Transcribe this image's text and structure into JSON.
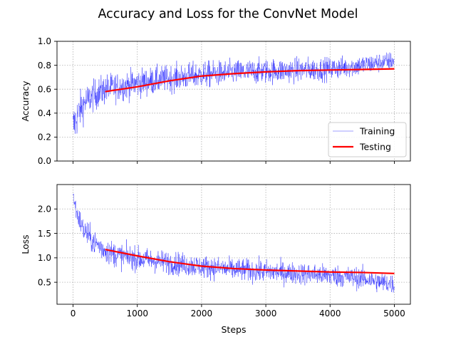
{
  "figure": {
    "suptitle": "Accuracy and Loss for the ConvNet Model"
  },
  "colors": {
    "training": "#0000ff",
    "testing": "#ff0000",
    "grid": "#b0b0b0",
    "axes": "#000000"
  },
  "chart_data": [
    {
      "type": "line",
      "panel": "top",
      "ylabel": "Accuracy",
      "xlabel": "",
      "xlim": [
        -250,
        5250
      ],
      "ylim": [
        0.0,
        1.0
      ],
      "yticks": [
        0.0,
        0.2,
        0.4,
        0.6,
        0.8,
        1.0
      ],
      "ytick_labels": [
        "0.0",
        "0.2",
        "0.4",
        "0.6",
        "0.8",
        "1.0"
      ],
      "xticks": [
        0,
        1000,
        2000,
        3000,
        4000,
        5000
      ],
      "grid": true,
      "legend": {
        "placement": "lower-right",
        "entries": [
          {
            "label": "Training",
            "series": "training"
          },
          {
            "label": "Testing",
            "series": "testing"
          }
        ]
      },
      "series": [
        {
          "name": "Training",
          "key": "training",
          "style": "thin-noisy",
          "x": [
            0,
            100,
            200,
            300,
            400,
            500,
            700,
            1000,
            1500,
            2000,
            2500,
            3000,
            3500,
            4000,
            4500,
            5000
          ],
          "values": [
            0.28,
            0.42,
            0.5,
            0.54,
            0.57,
            0.6,
            0.62,
            0.65,
            0.69,
            0.72,
            0.74,
            0.75,
            0.76,
            0.77,
            0.8,
            0.84
          ],
          "noise_band": [
            0.22,
            0.18,
            0.16,
            0.15,
            0.15,
            0.15,
            0.14,
            0.14,
            0.13,
            0.13,
            0.12,
            0.12,
            0.12,
            0.11,
            0.1,
            0.09
          ]
        },
        {
          "name": "Testing",
          "key": "testing",
          "style": "thick",
          "x": [
            500,
            1000,
            1500,
            2000,
            2500,
            3000,
            3500,
            4000,
            4500,
            5000
          ],
          "values": [
            0.58,
            0.62,
            0.67,
            0.71,
            0.73,
            0.745,
            0.755,
            0.76,
            0.765,
            0.77
          ]
        }
      ]
    },
    {
      "type": "line",
      "panel": "bottom",
      "ylabel": "Loss",
      "xlabel": "Steps",
      "xlim": [
        -250,
        5250
      ],
      "ylim": [
        0.05,
        2.5
      ],
      "yticks": [
        0.5,
        1.0,
        1.5,
        2.0
      ],
      "ytick_labels": [
        "0.5",
        "1.0",
        "1.5",
        "2.0"
      ],
      "xticks": [
        0,
        1000,
        2000,
        3000,
        4000,
        5000
      ],
      "xtick_labels": [
        "0",
        "1000",
        "2000",
        "3000",
        "4000",
        "5000"
      ],
      "grid": true,
      "series": [
        {
          "name": "Training",
          "key": "training",
          "style": "thin-noisy",
          "x": [
            0,
            50,
            150,
            300,
            500,
            700,
            1000,
            1500,
            2000,
            2500,
            3000,
            3500,
            4000,
            4500,
            5000
          ],
          "values": [
            2.3,
            1.95,
            1.6,
            1.35,
            1.15,
            1.05,
            0.98,
            0.9,
            0.82,
            0.76,
            0.72,
            0.68,
            0.64,
            0.58,
            0.45
          ],
          "noise_band": [
            0.1,
            0.25,
            0.3,
            0.3,
            0.3,
            0.3,
            0.28,
            0.28,
            0.27,
            0.27,
            0.27,
            0.26,
            0.26,
            0.26,
            0.24
          ]
        },
        {
          "name": "Testing",
          "key": "testing",
          "style": "thick",
          "x": [
            500,
            1000,
            1500,
            2000,
            2500,
            3000,
            3500,
            4000,
            4500,
            5000
          ],
          "values": [
            1.17,
            1.04,
            0.92,
            0.83,
            0.78,
            0.75,
            0.73,
            0.71,
            0.7,
            0.68
          ]
        }
      ]
    }
  ]
}
